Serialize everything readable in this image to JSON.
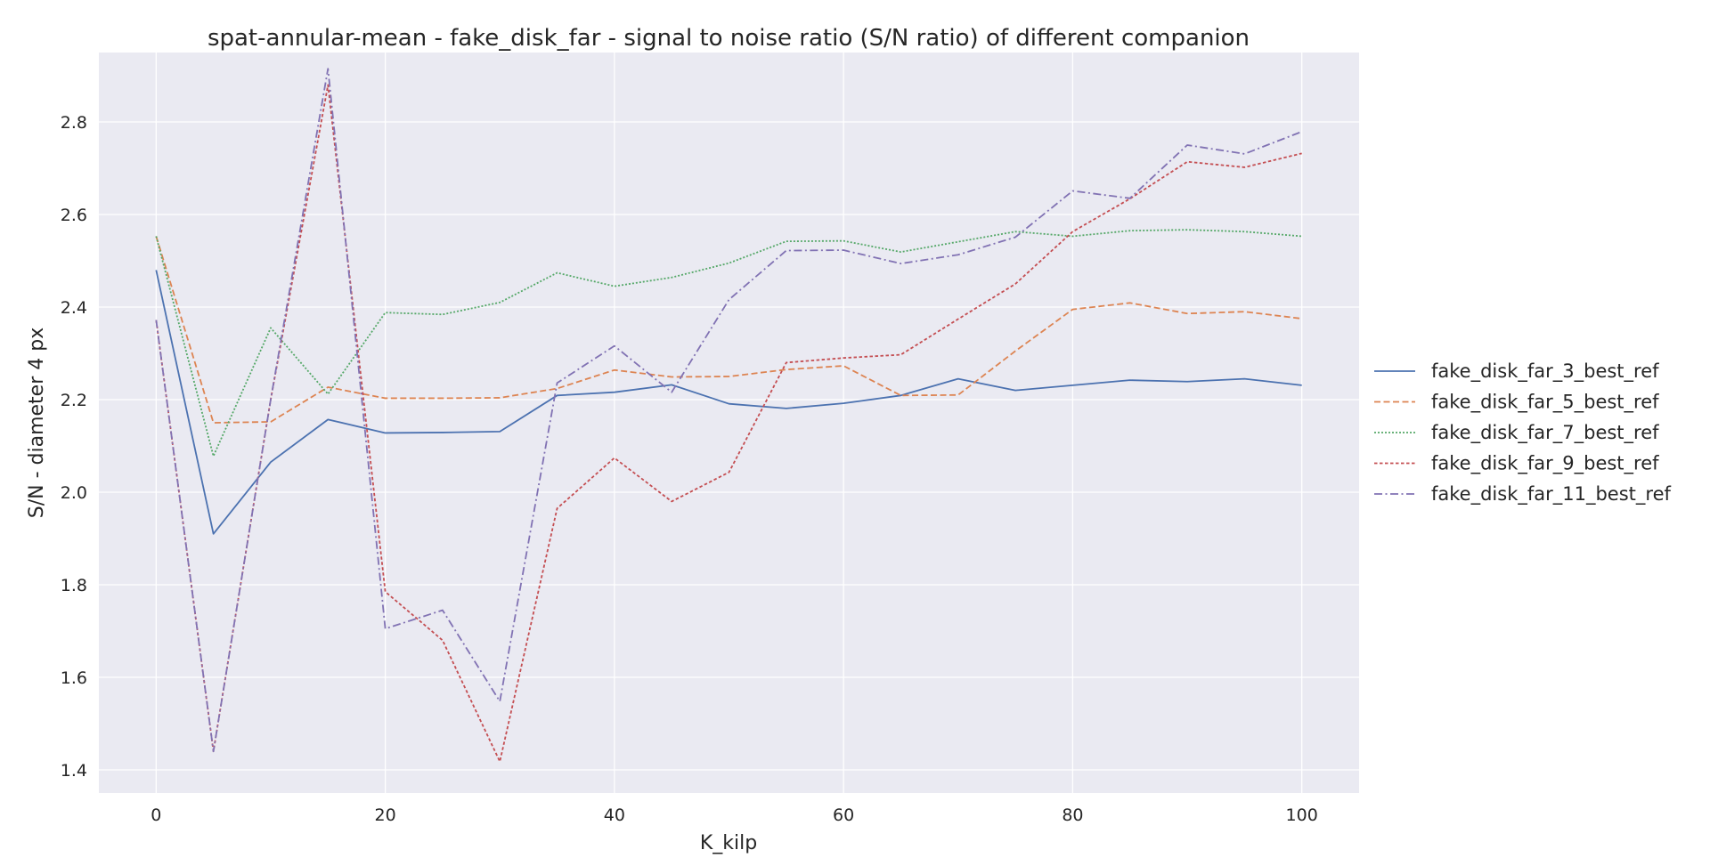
{
  "chart_data": {
    "type": "line",
    "title": "spat-annular-mean - fake_disk_far - signal to noise ratio (S/N ratio) of different companion",
    "xlabel": "K_kilp",
    "ylabel": "S/N - diameter 4 px",
    "xlim": [
      -5,
      105
    ],
    "ylim": [
      1.35,
      2.95
    ],
    "xticks": [
      0,
      20,
      40,
      60,
      80,
      100
    ],
    "yticks": [
      1.4,
      1.6,
      1.8,
      2.0,
      2.2,
      2.4,
      2.6,
      2.8
    ],
    "grid": true,
    "legend_position": "right",
    "x": [
      0,
      5,
      10,
      15,
      20,
      25,
      30,
      35,
      40,
      45,
      50,
      55,
      60,
      65,
      70,
      75,
      80,
      85,
      90,
      95,
      100
    ],
    "series": [
      {
        "name": "fake_disk_far_3_best_ref",
        "color": "#4c72b0",
        "dash": "solid",
        "values": [
          2.48,
          1.91,
          2.065,
          2.157,
          2.128,
          2.129,
          2.131,
          2.209,
          2.216,
          2.232,
          2.191,
          2.181,
          2.192,
          2.209,
          2.245,
          2.22,
          2.231,
          2.242,
          2.239,
          2.245,
          2.231
        ]
      },
      {
        "name": "fake_disk_far_5_best_ref",
        "color": "#dd8452",
        "dash": "dashed",
        "values": [
          2.553,
          2.15,
          2.152,
          2.227,
          2.203,
          2.203,
          2.204,
          2.224,
          2.264,
          2.249,
          2.25,
          2.265,
          2.273,
          2.209,
          2.21,
          2.305,
          2.395,
          2.409,
          2.386,
          2.39,
          2.375
        ]
      },
      {
        "name": "fake_disk_far_7_best_ref",
        "color": "#55a868",
        "dash": "dotted",
        "values": [
          2.553,
          2.078,
          2.355,
          2.212,
          2.388,
          2.384,
          2.41,
          2.474,
          2.445,
          2.464,
          2.495,
          2.542,
          2.543,
          2.519,
          2.541,
          2.563,
          2.553,
          2.565,
          2.567,
          2.563,
          2.553
        ]
      },
      {
        "name": "fake_disk_far_9_best_ref",
        "color": "#c44e52",
        "dash": "loosedot",
        "values": [
          2.372,
          1.44,
          2.2,
          2.88,
          1.785,
          1.68,
          1.418,
          1.965,
          2.074,
          1.98,
          2.043,
          2.28,
          2.29,
          2.297,
          2.374,
          2.45,
          2.563,
          2.634,
          2.714,
          2.702,
          2.732
        ]
      },
      {
        "name": "fake_disk_far_11_best_ref",
        "color": "#8172b3",
        "dash": "dashdot",
        "values": [
          2.372,
          1.44,
          2.2,
          2.915,
          1.705,
          1.745,
          1.548,
          2.236,
          2.316,
          2.216,
          2.416,
          2.522,
          2.523,
          2.494,
          2.513,
          2.551,
          2.651,
          2.635,
          2.75,
          2.731,
          2.779
        ]
      }
    ]
  }
}
